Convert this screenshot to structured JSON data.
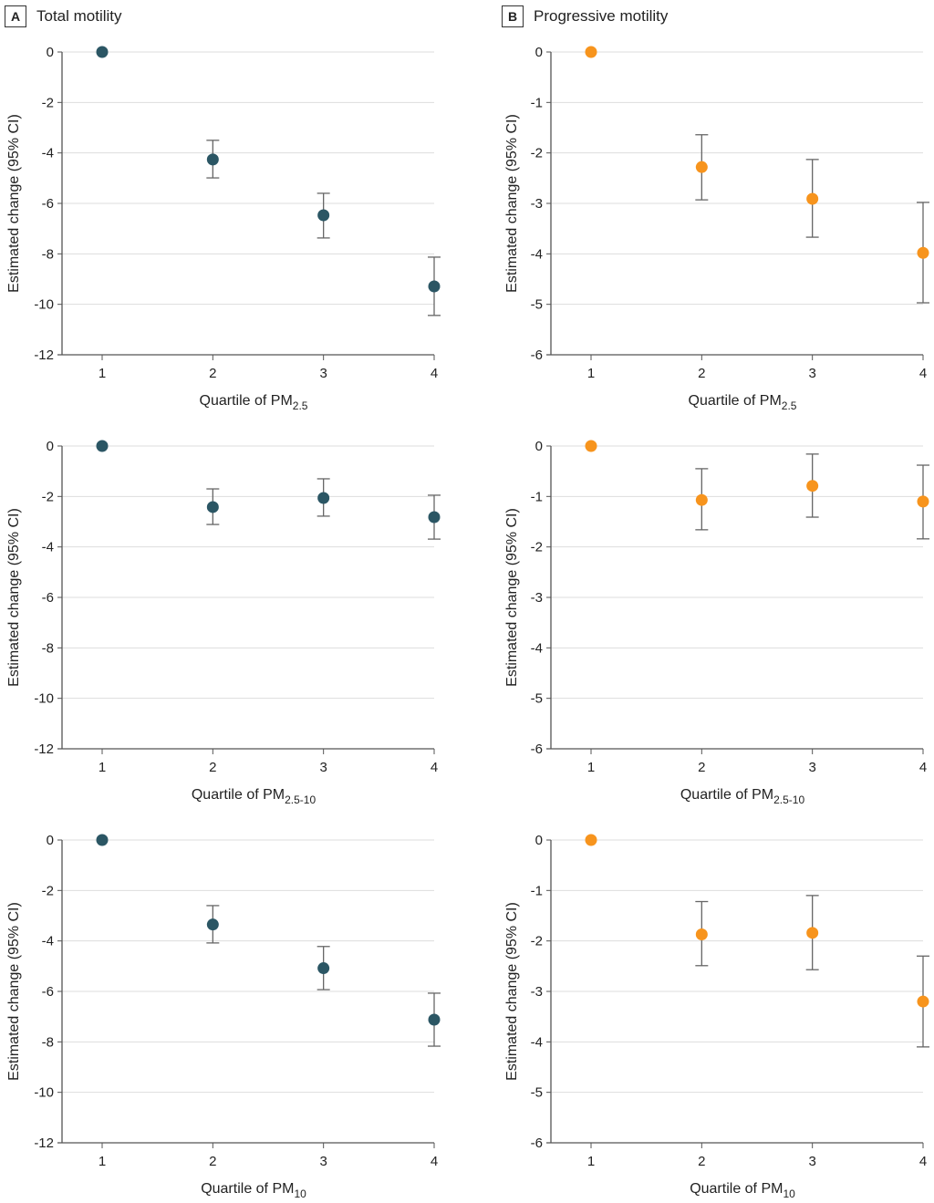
{
  "panels": {
    "A": {
      "letter": "A",
      "title": "Total motility"
    },
    "B": {
      "letter": "B",
      "title": "Progressive motility"
    }
  },
  "colors": {
    "total": "#2b5664",
    "progressive": "#f7941d",
    "errorbar": "#666666",
    "grid": "#dddddd",
    "axis": "#555555"
  },
  "chart_data": [
    {
      "type": "scatter",
      "panel": "A",
      "title": "Total motility",
      "xlabel": "Quartile of PM2.5",
      "xlabel_main": "Quartile of PM",
      "xlabel_sub": "2.5",
      "ylabel": "Estimated change (95% CI)",
      "ylim": [
        -12,
        0
      ],
      "yticks": [
        0,
        -2,
        -4,
        -6,
        -8,
        -10,
        -12
      ],
      "x": [
        1,
        2,
        3,
        4
      ],
      "y": [
        0,
        -4.26,
        -6.47,
        -9.29
      ],
      "ci_low": [
        null,
        -4.99,
        -7.37,
        -10.44
      ],
      "ci_high": [
        null,
        -3.5,
        -5.6,
        -8.13
      ],
      "grid": true
    },
    {
      "type": "scatter",
      "panel": "B",
      "title": "Progressive motility",
      "xlabel": "Quartile of PM2.5",
      "xlabel_main": "Quartile of PM",
      "xlabel_sub": "2.5",
      "ylabel": "Estimated change (95% CI)",
      "ylim": [
        -6,
        0
      ],
      "yticks": [
        0,
        -1,
        -2,
        -3,
        -4,
        -5,
        -6
      ],
      "x": [
        1,
        2,
        3,
        4
      ],
      "y": [
        0,
        -2.28,
        -2.91,
        -3.98
      ],
      "ci_low": [
        null,
        -2.93,
        -3.67,
        -4.97
      ],
      "ci_high": [
        null,
        -1.64,
        -2.13,
        -2.98
      ],
      "grid": true
    },
    {
      "type": "scatter",
      "panel": "A",
      "title": "",
      "xlabel": "Quartile of PM2.5-10",
      "xlabel_main": "Quartile of PM",
      "xlabel_sub": "2.5-10",
      "ylabel": "Estimated change (95% CI)",
      "ylim": [
        -12,
        0
      ],
      "yticks": [
        0,
        -2,
        -4,
        -6,
        -8,
        -10,
        -12
      ],
      "x": [
        1,
        2,
        3,
        4
      ],
      "y": [
        0,
        -2.42,
        -2.06,
        -2.82
      ],
      "ci_low": [
        null,
        -3.11,
        -2.78,
        -3.69
      ],
      "ci_high": [
        null,
        -1.7,
        -1.3,
        -1.95
      ],
      "grid": true
    },
    {
      "type": "scatter",
      "panel": "B",
      "title": "",
      "xlabel": "Quartile of PM2.5-10",
      "xlabel_main": "Quartile of PM",
      "xlabel_sub": "2.5-10",
      "ylabel": "Estimated change (95% CI)",
      "ylim": [
        -6,
        0
      ],
      "yticks": [
        0,
        -1,
        -2,
        -3,
        -4,
        -5,
        -6
      ],
      "x": [
        1,
        2,
        3,
        4
      ],
      "y": [
        0,
        -1.07,
        -0.79,
        -1.1
      ],
      "ci_low": [
        null,
        -1.66,
        -1.41,
        -1.84
      ],
      "ci_high": [
        null,
        -0.45,
        -0.16,
        -0.38
      ],
      "grid": true
    },
    {
      "type": "scatter",
      "panel": "A",
      "title": "",
      "xlabel": "Quartile of PM10",
      "xlabel_main": "Quartile of PM",
      "xlabel_sub": "10",
      "ylabel": "Estimated change (95% CI)",
      "ylim": [
        -12,
        0
      ],
      "yticks": [
        0,
        -2,
        -4,
        -6,
        -8,
        -10,
        -12
      ],
      "x": [
        1,
        2,
        3,
        4
      ],
      "y": [
        0,
        -3.35,
        -5.08,
        -7.12
      ],
      "ci_low": [
        null,
        -4.08,
        -5.93,
        -8.17
      ],
      "ci_high": [
        null,
        -2.6,
        -4.22,
        -6.07
      ],
      "grid": true
    },
    {
      "type": "scatter",
      "panel": "B",
      "title": "",
      "xlabel": "Quartile of PM10",
      "xlabel_main": "Quartile of PM",
      "xlabel_sub": "10",
      "ylabel": "Estimated change (95% CI)",
      "ylim": [
        -6,
        0
      ],
      "yticks": [
        0,
        -1,
        -2,
        -3,
        -4,
        -5,
        -6
      ],
      "x": [
        1,
        2,
        3,
        4
      ],
      "y": [
        0,
        -1.87,
        -1.84,
        -3.2
      ],
      "ci_low": [
        null,
        -2.49,
        -2.57,
        -4.1
      ],
      "ci_high": [
        null,
        -1.22,
        -1.1,
        -2.3
      ],
      "grid": true
    }
  ]
}
